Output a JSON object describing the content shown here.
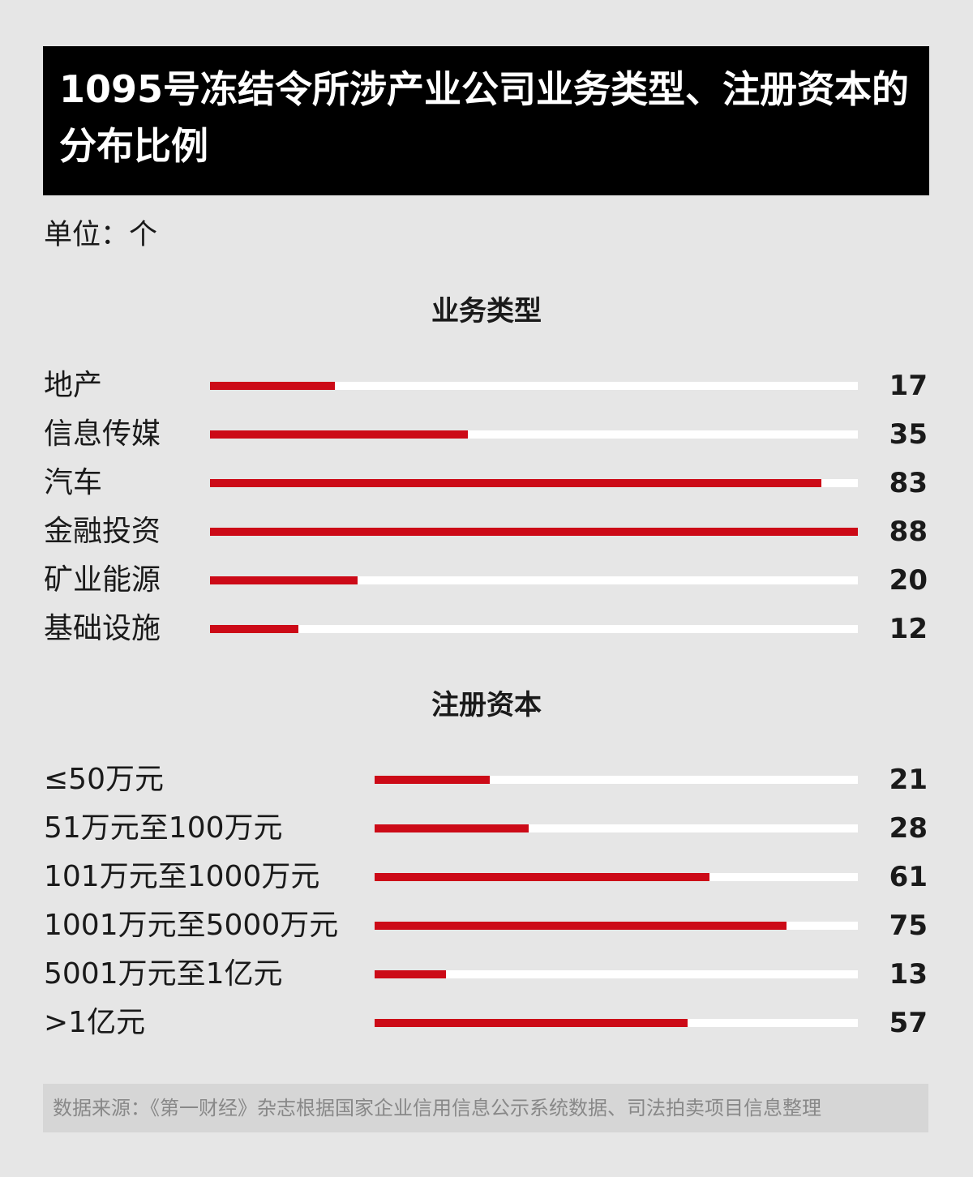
{
  "title": "1095号冻结令所涉产业公司业务类型、注册资本的分布比例",
  "unit": "单位：个",
  "source": "数据来源：《第一财经》杂志根据国家企业信用信息公示系统数据、司法拍卖项目信息整理",
  "colors": {
    "bar": "#cc0a17",
    "track": "#ffffff",
    "background": "#e6e6e6",
    "title_bg": "#000000"
  },
  "chart_data": [
    {
      "type": "bar",
      "orientation": "horizontal",
      "title": "业务类型",
      "categories": [
        "地产",
        "信息传媒",
        "汽车",
        "金融投资",
        "矿业能源",
        "基础设施"
      ],
      "values": [
        17,
        35,
        83,
        88,
        20,
        12
      ],
      "max": 88
    },
    {
      "type": "bar",
      "orientation": "horizontal",
      "title": "注册资本",
      "categories": [
        "≤50万元",
        "51万元至100万元",
        "101万元至1000万元",
        "1001万元至5000万元",
        "5001万元至1亿元",
        ">1亿元"
      ],
      "values": [
        21,
        28,
        61,
        75,
        13,
        57
      ],
      "max": 88
    }
  ]
}
